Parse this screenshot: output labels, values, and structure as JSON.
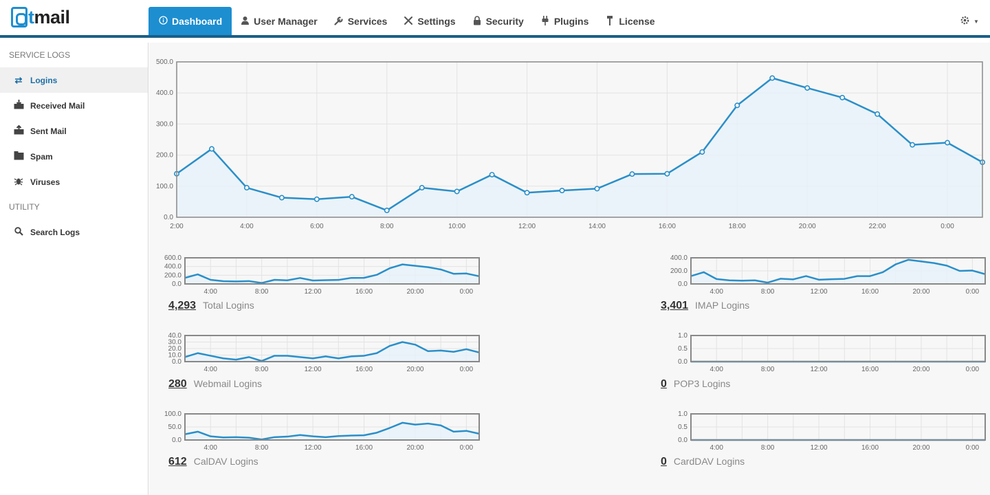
{
  "app": {
    "logo_prefix": "a",
    "logo_mid": "t",
    "logo_suffix": "mail"
  },
  "nav": [
    {
      "label": "Dashboard",
      "icon": "info-icon"
    },
    {
      "label": "User Manager",
      "icon": "user-icon"
    },
    {
      "label": "Services",
      "icon": "wrench-icon"
    },
    {
      "label": "Settings",
      "icon": "tools-icon"
    },
    {
      "label": "Security",
      "icon": "lock-icon"
    },
    {
      "label": "Plugins",
      "icon": "plug-icon"
    },
    {
      "label": "License",
      "icon": "key-icon"
    }
  ],
  "sidebar": {
    "service_logs_heading": "SERVICE LOGS",
    "utility_heading": "UTILITY",
    "items": [
      {
        "label": "Logins",
        "icon": "refresh-icon"
      },
      {
        "label": "Received Mail",
        "icon": "inbox-in-icon"
      },
      {
        "label": "Sent Mail",
        "icon": "inbox-out-icon"
      },
      {
        "label": "Spam",
        "icon": "trash-icon"
      },
      {
        "label": "Viruses",
        "icon": "bug-icon"
      }
    ],
    "search": {
      "label": "Search Logs",
      "icon": "search-icon"
    }
  },
  "colors": {
    "accent": "#1d8ed0",
    "nav_rule": "#1a5f87",
    "line": "#2a8fc9",
    "fill": "#e6f1f9"
  },
  "chart_data": [
    {
      "type": "area",
      "title": "",
      "x": [
        "2:00",
        "3:00",
        "4:00",
        "5:00",
        "6:00",
        "7:00",
        "8:00",
        "9:00",
        "10:00",
        "11:00",
        "12:00",
        "13:00",
        "14:00",
        "15:00",
        "16:00",
        "17:00",
        "18:00",
        "19:00",
        "20:00",
        "21:00",
        "22:00",
        "23:00",
        "0:00",
        "1:00"
      ],
      "x_tick_labels": [
        "2:00",
        "4:00",
        "6:00",
        "8:00",
        "10:00",
        "12:00",
        "14:00",
        "16:00",
        "18:00",
        "20:00",
        "22:00",
        "0:00"
      ],
      "y_tick_labels": [
        "500.0",
        "400.0",
        "300.0",
        "200.0",
        "100.0",
        "0.0"
      ],
      "values": [
        140,
        220,
        95,
        63,
        58,
        66,
        22,
        95,
        83,
        137,
        79,
        86,
        92,
        139,
        140,
        210,
        360,
        448,
        416,
        385,
        332,
        233,
        240,
        177
      ],
      "ylim": [
        0,
        500
      ]
    },
    {
      "type": "area",
      "x_tick_labels": [
        "4:00",
        "8:00",
        "12:00",
        "16:00",
        "20:00",
        "0:00"
      ],
      "y_tick_labels": [
        "600.0",
        "400.0",
        "200.0",
        "0.0"
      ],
      "values": [
        140,
        220,
        95,
        63,
        58,
        66,
        22,
        95,
        83,
        137,
        79,
        86,
        92,
        139,
        140,
        210,
        360,
        448,
        416,
        385,
        332,
        233,
        240,
        177
      ],
      "ylim": [
        0,
        600
      ]
    },
    {
      "type": "area",
      "x_tick_labels": [
        "4:00",
        "8:00",
        "12:00",
        "16:00",
        "20:00",
        "0:00"
      ],
      "y_tick_labels": [
        "400.0",
        "200.0",
        "0.0"
      ],
      "values": [
        120,
        180,
        75,
        55,
        50,
        55,
        20,
        80,
        70,
        120,
        65,
        72,
        78,
        120,
        120,
        180,
        300,
        370,
        345,
        320,
        280,
        200,
        205,
        150
      ],
      "ylim": [
        0,
        400
      ]
    },
    {
      "type": "area",
      "x_tick_labels": [
        "4:00",
        "8:00",
        "12:00",
        "16:00",
        "20:00",
        "0:00"
      ],
      "y_tick_labels": [
        "40.0",
        "30.0",
        "20.0",
        "10.0",
        "0.0"
      ],
      "values": [
        7,
        13,
        9,
        5,
        3,
        7,
        1,
        9,
        9,
        7,
        5,
        8,
        5,
        8,
        9,
        13,
        24,
        30,
        26,
        16,
        17,
        15,
        19,
        14
      ],
      "ylim": [
        0,
        40
      ]
    },
    {
      "type": "area",
      "x_tick_labels": [
        "4:00",
        "8:00",
        "12:00",
        "16:00",
        "20:00",
        "0:00"
      ],
      "y_tick_labels": [
        "1.0",
        "0.5",
        "0.0"
      ],
      "values": [
        0,
        0,
        0,
        0,
        0,
        0,
        0,
        0,
        0,
        0,
        0,
        0,
        0,
        0,
        0,
        0,
        0,
        0,
        0,
        0,
        0,
        0,
        0,
        0
      ],
      "ylim": [
        0,
        1
      ]
    },
    {
      "type": "area",
      "x_tick_labels": [
        "4:00",
        "8:00",
        "12:00",
        "16:00",
        "20:00",
        "0:00"
      ],
      "y_tick_labels": [
        "100.0",
        "50.0",
        "0.0"
      ],
      "values": [
        22,
        32,
        14,
        10,
        11,
        9,
        2,
        11,
        13,
        19,
        14,
        11,
        15,
        17,
        18,
        28,
        46,
        66,
        59,
        63,
        56,
        32,
        35,
        24
      ],
      "ylim": [
        0,
        100
      ]
    },
    {
      "type": "area",
      "x_tick_labels": [
        "4:00",
        "8:00",
        "12:00",
        "16:00",
        "20:00",
        "0:00"
      ],
      "y_tick_labels": [
        "1.0",
        "0.5",
        "0.0"
      ],
      "values": [
        0,
        0,
        0,
        0,
        0,
        0,
        0,
        0,
        0,
        0,
        0,
        0,
        0,
        0,
        0,
        0,
        0,
        0,
        0,
        0,
        0,
        0,
        0,
        0
      ],
      "ylim": [
        0,
        1
      ]
    }
  ],
  "stats": [
    {
      "value": "4,293",
      "label": "Total Logins"
    },
    {
      "value": "3,401",
      "label": "IMAP Logins"
    },
    {
      "value": "280",
      "label": "Webmail Logins"
    },
    {
      "value": "0",
      "label": "POP3 Logins"
    },
    {
      "value": "612",
      "label": "CalDAV Logins"
    },
    {
      "value": "0",
      "label": "CardDAV Logins"
    }
  ]
}
